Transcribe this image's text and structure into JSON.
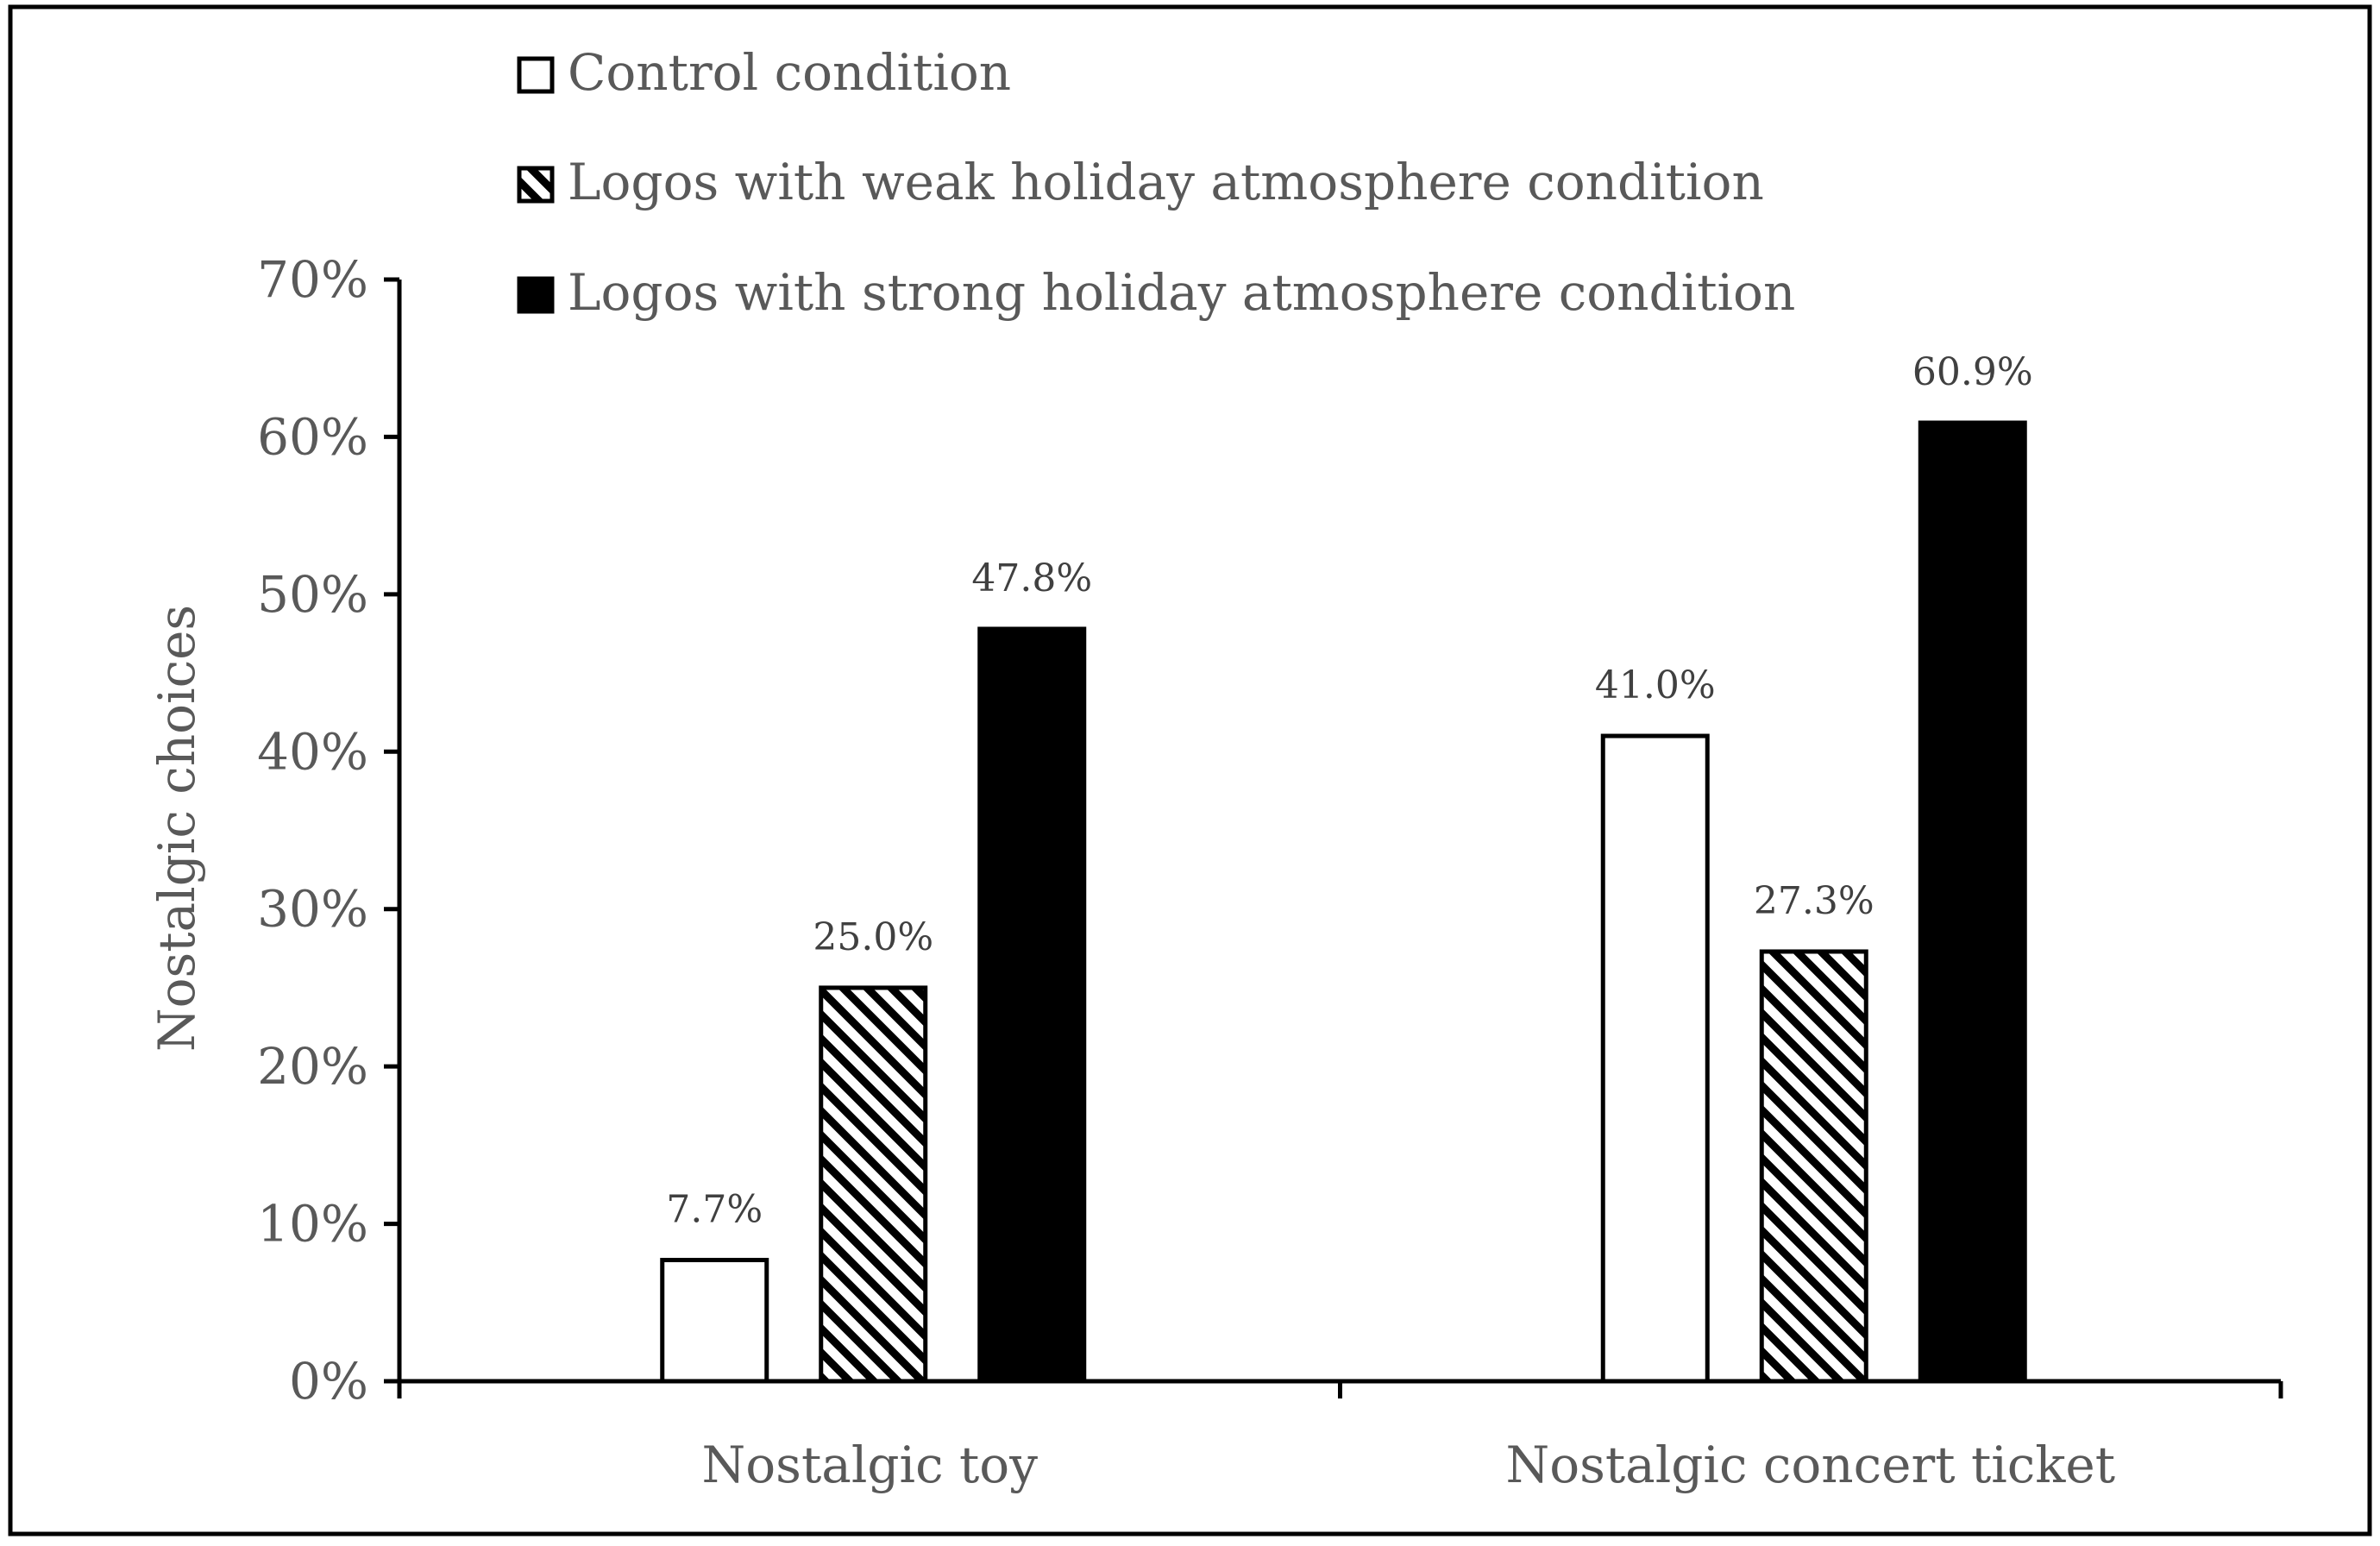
{
  "chart_data": {
    "type": "bar",
    "title": "",
    "xlabel": "",
    "ylabel": "Nostalgic choices",
    "ylim": [
      0,
      70
    ],
    "yticks": [
      "0%",
      "10%",
      "20%",
      "30%",
      "40%",
      "50%",
      "60%",
      "70%"
    ],
    "ytick_values": [
      0,
      10,
      20,
      30,
      40,
      50,
      60,
      70
    ],
    "categories": [
      "Nostalgic toy",
      "Nostalgic concert ticket"
    ],
    "series": [
      {
        "name": "Control condition",
        "values": [
          7.7,
          41.0
        ],
        "labels": [
          "7.7%",
          "41.0%"
        ],
        "fill": "white",
        "pattern": "none"
      },
      {
        "name": "Logos with weak holiday atmosphere condition",
        "values": [
          25.0,
          27.3
        ],
        "labels": [
          "25.0%",
          "27.3%"
        ],
        "fill": "hatched",
        "pattern": "diagonal-stripes"
      },
      {
        "name": "Logos with strong holiday atmosphere condition",
        "values": [
          47.8,
          60.9
        ],
        "labels": [
          "47.8%",
          "60.9%"
        ],
        "fill": "black",
        "pattern": "none"
      }
    ],
    "legend_position": "top",
    "grid": false
  },
  "colors": {
    "axis": "#000000",
    "text": "#595959",
    "data_label": "#404040",
    "bar_stroke": "#000000",
    "solid": "#000000",
    "empty": "#ffffff"
  }
}
